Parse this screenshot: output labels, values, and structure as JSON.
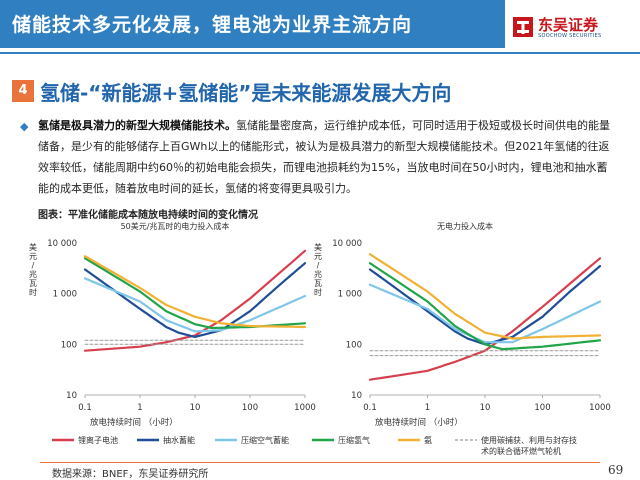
{
  "header": {
    "title": "储能技术多元化发展，锂电池为业界主流方向",
    "logo_name": "东吴证券",
    "logo_sub": "SOOCHOW SECURITIES"
  },
  "section": {
    "number": "4",
    "title": "氢储-“新能源+氢储能”是未来能源发展大方向"
  },
  "body": {
    "lead": "氢储是极具潜力的新型大规模储能技术。",
    "text": "氢储能量密度高，运行维护成本低，可同时适用于极短或极长时间供电的能量储备，是少有的能够储存上百GWh以上的储能形式，被认为是极具潜力的新型大规模储能技术。但2021年氢储的往返效率较低，储能周期中约60％的初始电能会损失，而锂电池损耗约为15%，当放电时间在50小时内，锂电池和抽水蓄能的成本更低，随着放电时间的延长，氢储的将变得更具吸引力。"
  },
  "figure": {
    "caption": "图表：平准化储能成本随放电持续时间的变化情况"
  },
  "footer": {
    "source": "数据来源：BNEF，东吴证券研究所",
    "page": "69"
  },
  "colors": {
    "title_bar": "#2f7fc1",
    "accent_orange": "#e8743b",
    "section_title": "#2166ac"
  },
  "chart_data": [
    {
      "type": "line",
      "title": "50美元/兆瓦时的电力投入成本",
      "ylabel": "美元/兆瓦时",
      "xlabel": "放电持续时间 （小时）",
      "xscale": "log",
      "yscale": "log",
      "xlim": [
        0.1,
        1000
      ],
      "ylim": [
        10,
        10000
      ],
      "x_ticks": [
        "0.1",
        "1",
        "10",
        "100",
        "1000"
      ],
      "y_ticks": [
        "10",
        "100",
        "1 000",
        "10 000"
      ],
      "grid": false,
      "series": [
        {
          "name": "锂离子电池",
          "color": "#d6404e",
          "dashed": false,
          "x": [
            0.1,
            1,
            3,
            10,
            30,
            100,
            1000
          ],
          "y": [
            75,
            90,
            110,
            150,
            300,
            800,
            7000
          ]
        },
        {
          "name": "抽水蓄能",
          "color": "#1f4e99",
          "dashed": false,
          "x": [
            0.1,
            1,
            3,
            5,
            10,
            30,
            100,
            300,
            1000
          ],
          "y": [
            3000,
            500,
            220,
            170,
            140,
            190,
            450,
            1300,
            4000
          ]
        },
        {
          "name": "压缩空气蓄能",
          "color": "#7fc6e8",
          "dashed": false,
          "x": [
            0.1,
            1,
            3,
            10,
            30,
            100,
            1000
          ],
          "y": [
            2000,
            700,
            300,
            180,
            190,
            300,
            900
          ]
        },
        {
          "name": "压缩氢气",
          "color": "#22a548",
          "dashed": false,
          "x": [
            0.1,
            1,
            3,
            10,
            20,
            100,
            1000
          ],
          "y": [
            5000,
            1100,
            450,
            250,
            210,
            220,
            260
          ]
        },
        {
          "name": "氨",
          "color": "#f2b134",
          "dashed": false,
          "x": [
            0.1,
            1,
            3,
            10,
            30,
            100,
            1000
          ],
          "y": [
            5500,
            1300,
            600,
            350,
            260,
            230,
            220
          ]
        },
        {
          "name": "使用碳捕获、利用与封存技术的联合循环燃气轮机",
          "color": "#9a9a9a",
          "dashed": true,
          "x": [
            0.1,
            1000
          ],
          "y": [
            120,
            120
          ]
        },
        {
          "name": "使用碳捕获、利用与封存技术的联合循环燃气轮机",
          "color": "#9a9a9a",
          "dashed": true,
          "x": [
            0.1,
            1000
          ],
          "y": [
            100,
            100
          ]
        }
      ]
    },
    {
      "type": "line",
      "title": "无电力投入成本",
      "ylabel": "美元/兆瓦时",
      "xlabel": "放电持续时间 （小时）",
      "xscale": "log",
      "yscale": "log",
      "xlim": [
        0.1,
        1000
      ],
      "ylim": [
        10,
        10000
      ],
      "x_ticks": [
        "0.1",
        "1",
        "10",
        "100",
        "1000"
      ],
      "y_ticks": [
        "10",
        "100",
        "1 000",
        "10 000"
      ],
      "grid": false,
      "series": [
        {
          "name": "锂离子电池",
          "color": "#d6404e",
          "dashed": false,
          "x": [
            0.1,
            1,
            3,
            10,
            30,
            100,
            1000
          ],
          "y": [
            20,
            30,
            45,
            75,
            180,
            550,
            5000
          ]
        },
        {
          "name": "抽水蓄能",
          "color": "#1f4e99",
          "dashed": false,
          "x": [
            0.1,
            1,
            3,
            5,
            10,
            30,
            100,
            300,
            1000
          ],
          "y": [
            3000,
            450,
            180,
            130,
            100,
            140,
            350,
            1100,
            3500
          ]
        },
        {
          "name": "压缩空气蓄能",
          "color": "#7fc6e8",
          "dashed": false,
          "x": [
            0.1,
            1,
            3,
            10,
            30,
            100,
            1000
          ],
          "y": [
            1500,
            500,
            200,
            110,
            110,
            200,
            700
          ]
        },
        {
          "name": "压缩氢气",
          "color": "#22a548",
          "dashed": false,
          "x": [
            0.1,
            1,
            3,
            10,
            20,
            100,
            1000
          ],
          "y": [
            4000,
            700,
            230,
            100,
            80,
            90,
            120
          ]
        },
        {
          "name": "氨",
          "color": "#f2b134",
          "dashed": false,
          "x": [
            0.1,
            1,
            3,
            10,
            30,
            100,
            1000
          ],
          "y": [
            6000,
            1100,
            400,
            170,
            130,
            140,
            150
          ]
        },
        {
          "name": "使用碳捕获、利用与封存技术的联合循环燃气轮机",
          "color": "#9a9a9a",
          "dashed": true,
          "x": [
            0.1,
            1000
          ],
          "y": [
            75,
            75
          ]
        },
        {
          "name": "使用碳捕获、利用与封存技术的联合循环燃气轮机",
          "color": "#9a9a9a",
          "dashed": true,
          "x": [
            0.1,
            1000
          ],
          "y": [
            60,
            60
          ]
        }
      ]
    }
  ],
  "legend": [
    {
      "label": "锂离子电池",
      "color": "#d6404e"
    },
    {
      "label": "抽水蓄能",
      "color": "#1f4e99"
    },
    {
      "label": "压缩空气蓄能",
      "color": "#7fc6e8"
    },
    {
      "label": "压缩氢气",
      "color": "#22a548"
    },
    {
      "label": "氨",
      "color": "#f2b134"
    },
    {
      "label": "使用碳捕获、利用与封存技术的联合循环燃气轮机",
      "color": "#9a9a9a",
      "dashed": true
    }
  ]
}
